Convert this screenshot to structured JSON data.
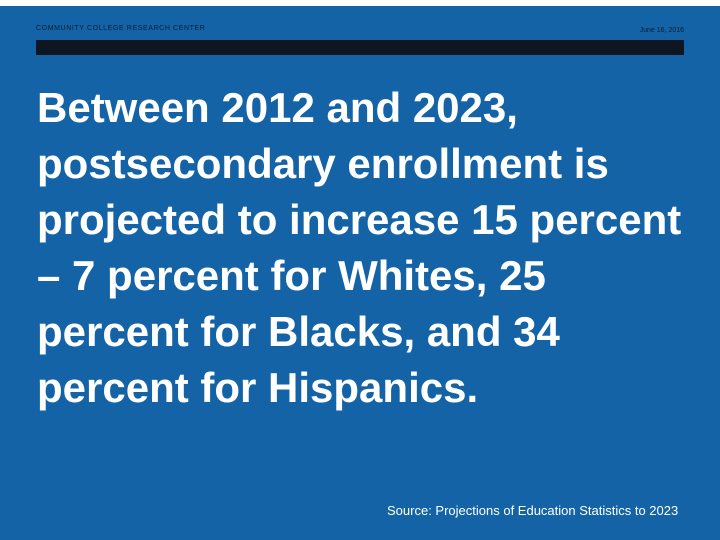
{
  "header": {
    "organization": "COMMUNITY COLLEGE RESEARCH CENTER",
    "date": "June 16, 2016"
  },
  "headline": "Between 2012 and 2023, postsecondary enrollment is projected to increase 15 percent – 7 percent for Whites, 25 percent for Blacks, and 34 percent for Hispanics.",
  "source": "Source: Projections of Education Statistics to 2023",
  "colors": {
    "background": "#1463a6",
    "header_bar": "#0d1621",
    "text": "#ffffff"
  }
}
